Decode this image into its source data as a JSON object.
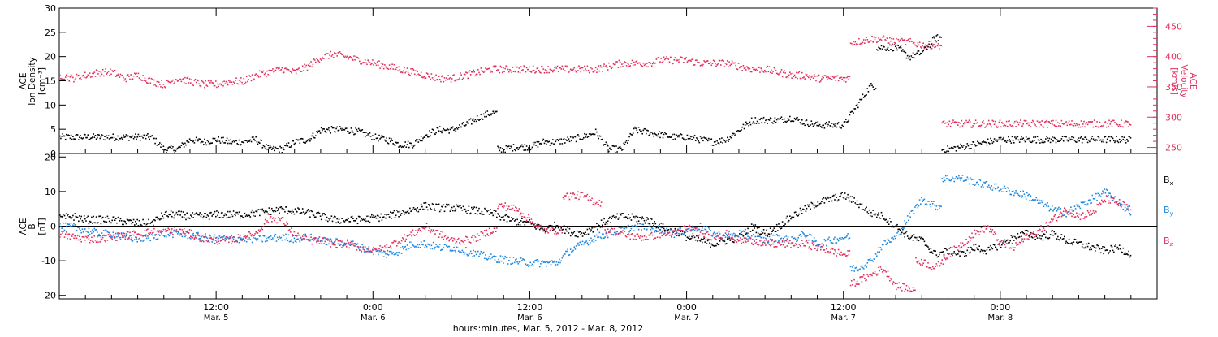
{
  "colors": {
    "black": "#000000",
    "pink": "#e0305e",
    "blue": "#1e88e0"
  },
  "chart_data": [
    {
      "type": "scatter",
      "panel": "top",
      "ylabel_lines": [
        "ACE",
        "Ion Density",
        "[cm⁻³]"
      ],
      "ylim": [
        0,
        30
      ],
      "yticks": [
        0,
        5,
        10,
        15,
        20,
        25,
        30
      ],
      "y2label_lines": [
        "ACE",
        "Velocity",
        "[km/s]"
      ],
      "y2lim": [
        240,
        480
      ],
      "y2ticks": [
        250,
        300,
        350,
        400,
        450
      ],
      "x_range_hours": [
        0,
        84
      ],
      "series": [
        {
          "name": "",
          "axis": "left",
          "color": "black",
          "x": [
            0,
            1,
            2,
            3,
            4,
            5,
            6,
            7,
            8,
            9,
            10,
            11,
            12,
            13,
            14,
            15,
            16,
            17,
            18,
            19,
            20,
            21,
            22,
            23,
            24,
            25,
            26,
            27,
            28,
            29,
            30,
            31,
            32,
            33,
            34,
            35,
            36,
            37,
            38,
            39,
            40,
            41,
            42,
            43,
            44,
            45,
            46,
            47,
            48,
            49,
            50,
            51,
            52,
            53,
            54,
            55,
            56,
            57,
            58,
            59,
            60,
            61,
            62,
            63,
            64,
            65,
            66,
            67,
            68,
            69,
            70,
            71,
            72,
            73,
            74,
            75,
            76,
            77,
            78,
            79,
            80,
            81,
            82
          ],
          "values": [
            3.5,
            3.5,
            3.5,
            3.5,
            3.5,
            3.5,
            3.5,
            3.5,
            1.0,
            1.0,
            3.0,
            2.5,
            3.0,
            2.5,
            2.5,
            3.0,
            1.0,
            1.0,
            2.5,
            3.0,
            5.0,
            5.0,
            5.0,
            4.5,
            3.5,
            3.0,
            2.0,
            2.0,
            4.0,
            5.0,
            5.0,
            6.0,
            7.5,
            8.5,
            1.0,
            1.5,
            1.5,
            2.5,
            2.5,
            3.0,
            3.5,
            4.5,
            1.0,
            1.0,
            5.0,
            4.5,
            4.0,
            3.5,
            3.5,
            3.0,
            2.5,
            3.0,
            5.0,
            7.0,
            7.0,
            7.0,
            7.5,
            6.5,
            6.0,
            6.0,
            6.0,
            10.0,
            14.0,
            22.0,
            22.0,
            20.0,
            21.0,
            24.0,
            1.0,
            1.5,
            2.0,
            2.5,
            3.0,
            3.0,
            3.0,
            3.0,
            3.0,
            3.0,
            3.0,
            3.0,
            3.0,
            3.0,
            3.0
          ]
        },
        {
          "name": "",
          "axis": "right",
          "color": "pink",
          "x": [
            0,
            1,
            2,
            3,
            4,
            5,
            6,
            7,
            8,
            9,
            10,
            11,
            12,
            13,
            14,
            15,
            16,
            17,
            18,
            19,
            20,
            21,
            22,
            23,
            24,
            25,
            26,
            27,
            28,
            29,
            30,
            31,
            32,
            33,
            34,
            35,
            36,
            37,
            38,
            39,
            40,
            41,
            42,
            43,
            44,
            45,
            46,
            47,
            48,
            49,
            50,
            51,
            52,
            53,
            54,
            55,
            56,
            57,
            58,
            59,
            60,
            61,
            62,
            63,
            64,
            65,
            66,
            67,
            68,
            69,
            70,
            71,
            72,
            73,
            74,
            75,
            76,
            77,
            78,
            79,
            80,
            81,
            82
          ],
          "values": [
            370,
            365,
            370,
            375,
            375,
            365,
            370,
            360,
            355,
            365,
            360,
            355,
            355,
            360,
            360,
            370,
            375,
            380,
            375,
            385,
            400,
            405,
            400,
            395,
            390,
            385,
            380,
            375,
            370,
            365,
            365,
            370,
            375,
            380,
            380,
            380,
            380,
            380,
            380,
            380,
            380,
            380,
            385,
            390,
            390,
            390,
            395,
            395,
            395,
            390,
            390,
            390,
            385,
            380,
            380,
            375,
            370,
            370,
            365,
            365,
            365,
            425,
            430,
            430,
            425,
            425,
            420,
            420,
            290,
            290,
            290,
            290,
            290,
            290,
            290,
            290,
            290,
            290,
            290,
            290,
            290,
            290,
            290
          ]
        }
      ]
    },
    {
      "type": "scatter",
      "panel": "bottom",
      "ylabel_lines": [
        "ACE",
        "B",
        "[nT]"
      ],
      "ylim": [
        -21,
        21
      ],
      "yticks": [
        -20,
        -10,
        0,
        10,
        20
      ],
      "x_range_hours": [
        0,
        84
      ],
      "xtick_hours": [
        12,
        24,
        36,
        48,
        60,
        72
      ],
      "xtick_labels": [
        [
          "12:00",
          "Mar. 5"
        ],
        [
          "0:00",
          "Mar. 6"
        ],
        [
          "12:00",
          "Mar. 6"
        ],
        [
          "0:00",
          "Mar. 7"
        ],
        [
          "12:00",
          "Mar. 7"
        ],
        [
          "0:00",
          "Mar. 8"
        ]
      ],
      "xlabel": "hours:minutes, Mar.  5, 2012 - Mar.  8, 2012",
      "legend": [
        "B",
        "B",
        "B"
      ],
      "legend_subscripts": [
        "x",
        "y",
        "z"
      ],
      "series": [
        {
          "name": "B_x",
          "color": "black",
          "x": [
            0,
            1,
            2,
            3,
            4,
            5,
            6,
            7,
            8,
            9,
            10,
            11,
            12,
            13,
            14,
            15,
            16,
            17,
            18,
            19,
            20,
            21,
            22,
            23,
            24,
            25,
            26,
            27,
            28,
            29,
            30,
            31,
            32,
            33,
            34,
            35,
            36,
            37,
            38,
            39,
            40,
            41,
            42,
            43,
            44,
            45,
            46,
            47,
            48,
            49,
            50,
            51,
            52,
            53,
            54,
            55,
            56,
            57,
            58,
            59,
            60,
            61,
            62,
            63,
            64,
            65,
            66,
            67,
            68,
            69,
            70,
            71,
            72,
            73,
            74,
            75,
            76,
            77,
            78,
            79,
            80,
            81,
            82
          ],
          "values": [
            2.5,
            3.0,
            2.0,
            2.0,
            2.0,
            1.5,
            1.0,
            1.0,
            3.5,
            3.5,
            3.0,
            3.0,
            3.5,
            3.5,
            3.5,
            4.0,
            4.5,
            5.0,
            4.5,
            4.0,
            3.0,
            2.0,
            2.0,
            2.0,
            2.5,
            3.0,
            4.0,
            5.0,
            6.0,
            5.5,
            5.5,
            5.0,
            4.5,
            4.0,
            2.5,
            1.5,
            1.0,
            -1.0,
            0.5,
            -1.5,
            -2.0,
            0.0,
            2.0,
            3.0,
            2.5,
            2.0,
            0.0,
            -1.0,
            -3.0,
            -4.0,
            -5.0,
            -4.0,
            -3.0,
            0.0,
            -2.0,
            0.0,
            3.0,
            5.0,
            7.0,
            8.0,
            9.0,
            7.0,
            4.0,
            3.0,
            0.0,
            -3.0,
            -4.0,
            -8.0,
            -7.0,
            -8.0,
            -6.0,
            -7.0,
            -5.0,
            -3.0,
            -2.0,
            -3.0,
            -2.0,
            -4.0,
            -5.0,
            -6.0,
            -7.0,
            -6.0,
            -8.0
          ]
        },
        {
          "name": "B_y",
          "color": "blue",
          "x": [
            0,
            1,
            2,
            3,
            4,
            5,
            6,
            7,
            8,
            9,
            10,
            11,
            12,
            13,
            14,
            15,
            16,
            17,
            18,
            19,
            20,
            21,
            22,
            23,
            24,
            25,
            26,
            27,
            28,
            29,
            30,
            31,
            32,
            33,
            34,
            35,
            36,
            37,
            38,
            39,
            40,
            41,
            42,
            43,
            44,
            45,
            46,
            47,
            48,
            49,
            50,
            51,
            52,
            53,
            54,
            55,
            56,
            57,
            58,
            59,
            60,
            61,
            62,
            63,
            64,
            65,
            66,
            67,
            68,
            69,
            70,
            71,
            72,
            73,
            74,
            75,
            76,
            77,
            78,
            79,
            80,
            81,
            82
          ],
          "values": [
            0.0,
            0.0,
            -1.0,
            -2.0,
            -2.0,
            -3.0,
            -3.5,
            -3.0,
            -2.0,
            -2.0,
            -2.5,
            -3.0,
            -3.5,
            -3.5,
            -3.5,
            -3.5,
            -3.5,
            -3.0,
            -3.5,
            -3.0,
            -4.0,
            -4.5,
            -4.5,
            -6.0,
            -7.0,
            -8.0,
            -7.0,
            -5.0,
            -5.0,
            -6.0,
            -6.0,
            -7.0,
            -8.0,
            -9.0,
            -9.5,
            -10.0,
            -10.5,
            -10.5,
            -10.5,
            -7.0,
            -5.0,
            -3.0,
            -2.0,
            -1.0,
            0.0,
            0.0,
            -1.0,
            -2.0,
            -1.0,
            0.0,
            -2.0,
            -3.0,
            -2.0,
            -3.0,
            -4.0,
            -3.0,
            -4.0,
            -2.0,
            -5.0,
            -4.0,
            -3.0,
            -12.0,
            -10.0,
            -5.0,
            -3.0,
            3.0,
            8.0,
            6.0,
            14.0,
            14.0,
            13.0,
            12.0,
            11.0,
            10.0,
            9.0,
            7.0,
            5.0,
            4.0,
            6.0,
            8.0,
            10.0,
            7.0,
            4.0
          ]
        },
        {
          "name": "B_z",
          "color": "pink",
          "x": [
            0,
            1,
            2,
            3,
            4,
            5,
            6,
            7,
            8,
            9,
            10,
            11,
            12,
            13,
            14,
            15,
            16,
            17,
            18,
            19,
            20,
            21,
            22,
            23,
            24,
            25,
            26,
            27,
            28,
            29,
            30,
            31,
            32,
            33,
            34,
            35,
            36,
            37,
            38,
            39,
            40,
            41,
            42,
            43,
            44,
            45,
            46,
            47,
            48,
            49,
            50,
            51,
            52,
            53,
            54,
            55,
            56,
            57,
            58,
            59,
            60,
            61,
            62,
            63,
            64,
            65,
            66,
            67,
            68,
            69,
            70,
            71,
            72,
            73,
            74,
            75,
            76,
            77,
            78,
            79,
            80,
            81,
            82
          ],
          "values": [
            -2.0,
            -3.0,
            -3.5,
            -3.5,
            -3.0,
            -2.5,
            -2.0,
            -1.5,
            -1.5,
            -1.0,
            -2.0,
            -3.5,
            -4.0,
            -4.0,
            -3.0,
            -2.0,
            2.5,
            2.0,
            -2.5,
            -4.0,
            -4.0,
            -5.0,
            -5.0,
            -6.0,
            -7.0,
            -6.0,
            -4.0,
            -2.0,
            0.0,
            -2.0,
            -4.0,
            -4.0,
            -3.0,
            -1.0,
            6.0,
            5.0,
            2.0,
            -1.0,
            -1.0,
            9.0,
            9.0,
            7.0,
            -1.0,
            -2.0,
            -3.0,
            -3.0,
            -2.0,
            -2.0,
            0.0,
            -2.0,
            -3.0,
            -2.0,
            -4.0,
            -4.0,
            -5.0,
            -5.0,
            -5.0,
            -5.0,
            -6.0,
            -7.0,
            -8.0,
            -16.0,
            -14.0,
            -12.0,
            -17.0,
            -18.0,
            -10.0,
            -12.0,
            -8.0,
            -5.0,
            -2.0,
            0.0,
            -5.0,
            -6.0,
            -3.0,
            -1.0,
            2.0,
            5.0,
            3.0,
            4.0,
            8.0,
            7.0,
            5.0
          ]
        }
      ]
    }
  ]
}
